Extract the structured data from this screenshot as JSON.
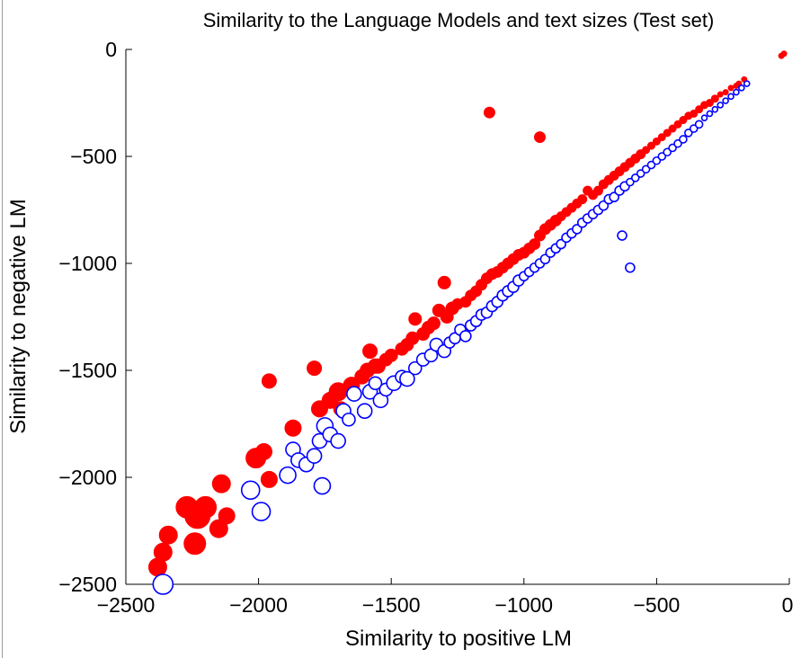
{
  "chart_data": {
    "type": "scatter",
    "title": "Similarity to the Language Models and text sizes (Test set)",
    "xlabel": "Similarity to positive LM",
    "ylabel": "Similarity to negative LM",
    "xlim": [
      -2500,
      0
    ],
    "ylim": [
      -2500,
      0
    ],
    "xticks": [
      "−2500",
      "−2000",
      "−1500",
      "−1000",
      "−500",
      "0"
    ],
    "xtick_values": [
      -2500,
      -2000,
      -1500,
      -1000,
      -500,
      0
    ],
    "yticks": [
      "0",
      "−500",
      "−1000",
      "−1500",
      "−2000",
      "−2500"
    ],
    "ytick_values": [
      0,
      -500,
      -1000,
      -1500,
      -2000,
      -2500
    ],
    "grid": false,
    "marker_size_encodes": "text size",
    "series": [
      {
        "color": "#ff0000",
        "marker": "filled-circle",
        "points": [
          [
            -2380,
            -2420,
            10
          ],
          [
            -2360,
            -2350,
            10
          ],
          [
            -2340,
            -2270,
            10
          ],
          [
            -2240,
            -2310,
            12
          ],
          [
            -2270,
            -2140,
            12
          ],
          [
            -2230,
            -2180,
            14
          ],
          [
            -2200,
            -2140,
            12
          ],
          [
            -2150,
            -2240,
            10
          ],
          [
            -2140,
            -2030,
            10
          ],
          [
            -2120,
            -2180,
            9
          ],
          [
            -2010,
            -1910,
            11
          ],
          [
            -1980,
            -1880,
            9
          ],
          [
            -1960,
            -2010,
            9
          ],
          [
            -1960,
            -1550,
            8
          ],
          [
            -1870,
            -1770,
            9
          ],
          [
            -1790,
            -1490,
            8
          ],
          [
            -1770,
            -1680,
            9
          ],
          [
            -1730,
            -1640,
            9
          ],
          [
            -1700,
            -1600,
            10
          ],
          [
            -1690,
            -1680,
            8
          ],
          [
            -1650,
            -1570,
            9
          ],
          [
            -1610,
            -1530,
            8
          ],
          [
            -1590,
            -1500,
            8
          ],
          [
            -1580,
            -1410,
            8
          ],
          [
            -1560,
            -1480,
            8
          ],
          [
            -1550,
            -1480,
            8
          ],
          [
            -1520,
            -1450,
            7
          ],
          [
            -1500,
            -1430,
            7
          ],
          [
            -1460,
            -1400,
            7
          ],
          [
            -1440,
            -1380,
            7
          ],
          [
            -1420,
            -1350,
            7
          ],
          [
            -1410,
            -1260,
            7
          ],
          [
            -1380,
            -1330,
            7
          ],
          [
            -1360,
            -1300,
            7
          ],
          [
            -1340,
            -1280,
            7
          ],
          [
            -1320,
            -1220,
            7
          ],
          [
            -1300,
            -1090,
            7
          ],
          [
            -1290,
            -1250,
            7
          ],
          [
            -1270,
            -1210,
            7
          ],
          [
            -1250,
            -1190,
            6
          ],
          [
            -1220,
            -1180,
            6
          ],
          [
            -1200,
            -1150,
            6
          ],
          [
            -1180,
            -1130,
            6
          ],
          [
            -1160,
            -1100,
            6
          ],
          [
            -1140,
            -1070,
            6
          ],
          [
            -1120,
            -1050,
            6
          ],
          [
            -1130,
            -295,
            6
          ],
          [
            -1100,
            -1040,
            6
          ],
          [
            -1080,
            -1020,
            6
          ],
          [
            -1060,
            -1000,
            6
          ],
          [
            -1040,
            -980,
            6
          ],
          [
            -1020,
            -960,
            6
          ],
          [
            -1000,
            -950,
            6
          ],
          [
            -980,
            -930,
            6
          ],
          [
            -960,
            -910,
            6
          ],
          [
            -940,
            -410,
            6
          ],
          [
            -940,
            -870,
            6
          ],
          [
            -920,
            -840,
            6
          ],
          [
            -900,
            -820,
            6
          ],
          [
            -880,
            -800,
            6
          ],
          [
            -860,
            -780,
            5
          ],
          [
            -840,
            -760,
            5
          ],
          [
            -820,
            -740,
            5
          ],
          [
            -800,
            -720,
            5
          ],
          [
            -780,
            -700,
            5
          ],
          [
            -760,
            -660,
            5
          ],
          [
            -740,
            -680,
            5
          ],
          [
            -720,
            -660,
            5
          ],
          [
            -700,
            -630,
            5
          ],
          [
            -680,
            -610,
            5
          ],
          [
            -660,
            -590,
            5
          ],
          [
            -640,
            -570,
            5
          ],
          [
            -620,
            -550,
            5
          ],
          [
            -600,
            -530,
            5
          ],
          [
            -580,
            -510,
            5
          ],
          [
            -560,
            -490,
            5
          ],
          [
            -540,
            -470,
            4
          ],
          [
            -520,
            -450,
            4
          ],
          [
            -500,
            -430,
            4
          ],
          [
            -480,
            -410,
            4
          ],
          [
            -460,
            -390,
            4
          ],
          [
            -440,
            -370,
            4
          ],
          [
            -420,
            -350,
            4
          ],
          [
            -400,
            -330,
            4
          ],
          [
            -380,
            -310,
            4
          ],
          [
            -360,
            -300,
            4
          ],
          [
            -340,
            -280,
            4
          ],
          [
            -320,
            -260,
            4
          ],
          [
            -300,
            -250,
            4
          ],
          [
            -280,
            -230,
            4
          ],
          [
            -260,
            -210,
            3
          ],
          [
            -240,
            -200,
            3
          ],
          [
            -220,
            -180,
            3
          ],
          [
            -200,
            -170,
            3
          ],
          [
            -190,
            -160,
            3
          ],
          [
            -170,
            -140,
            3
          ],
          [
            -30,
            -30,
            3
          ],
          [
            -20,
            -20,
            3
          ]
        ]
      },
      {
        "color": "#0000ff",
        "marker": "open-circle",
        "points": [
          [
            -2360,
            -2500,
            11
          ],
          [
            -2030,
            -2060,
            10
          ],
          [
            -1990,
            -2160,
            10
          ],
          [
            -1890,
            -1990,
            9
          ],
          [
            -1870,
            -1870,
            8
          ],
          [
            -1850,
            -1920,
            8
          ],
          [
            -1820,
            -1940,
            8
          ],
          [
            -1790,
            -1900,
            8
          ],
          [
            -1770,
            -1830,
            8
          ],
          [
            -1760,
            -2040,
            9
          ],
          [
            -1750,
            -1760,
            9
          ],
          [
            -1730,
            -1800,
            8
          ],
          [
            -1700,
            -1830,
            8
          ],
          [
            -1680,
            -1690,
            8
          ],
          [
            -1660,
            -1730,
            7
          ],
          [
            -1640,
            -1610,
            8
          ],
          [
            -1600,
            -1690,
            8
          ],
          [
            -1580,
            -1600,
            8
          ],
          [
            -1560,
            -1560,
            7
          ],
          [
            -1540,
            -1640,
            8
          ],
          [
            -1520,
            -1590,
            7
          ],
          [
            -1490,
            -1560,
            8
          ],
          [
            -1460,
            -1530,
            7
          ],
          [
            -1440,
            -1540,
            8
          ],
          [
            -1410,
            -1490,
            7
          ],
          [
            -1380,
            -1450,
            7
          ],
          [
            -1350,
            -1430,
            7
          ],
          [
            -1330,
            -1380,
            7
          ],
          [
            -1300,
            -1410,
            7
          ],
          [
            -1280,
            -1370,
            6
          ],
          [
            -1260,
            -1350,
            6
          ],
          [
            -1240,
            -1310,
            6
          ],
          [
            -1220,
            -1340,
            6
          ],
          [
            -1200,
            -1290,
            6
          ],
          [
            -1180,
            -1270,
            6
          ],
          [
            -1160,
            -1240,
            6
          ],
          [
            -1140,
            -1230,
            6
          ],
          [
            -1120,
            -1200,
            6
          ],
          [
            -1100,
            -1180,
            6
          ],
          [
            -1080,
            -1150,
            6
          ],
          [
            -1060,
            -1130,
            6
          ],
          [
            -1040,
            -1110,
            6
          ],
          [
            -1020,
            -1080,
            6
          ],
          [
            -1000,
            -1060,
            5
          ],
          [
            -980,
            -1040,
            5
          ],
          [
            -960,
            -1020,
            5
          ],
          [
            -940,
            -1000,
            5
          ],
          [
            -920,
            -980,
            5
          ],
          [
            -900,
            -950,
            5
          ],
          [
            -880,
            -930,
            5
          ],
          [
            -860,
            -910,
            5
          ],
          [
            -840,
            -880,
            5
          ],
          [
            -820,
            -860,
            5
          ],
          [
            -800,
            -840,
            5
          ],
          [
            -780,
            -810,
            5
          ],
          [
            -760,
            -790,
            5
          ],
          [
            -740,
            -770,
            5
          ],
          [
            -720,
            -750,
            5
          ],
          [
            -700,
            -730,
            5
          ],
          [
            -680,
            -700,
            5
          ],
          [
            -660,
            -690,
            5
          ],
          [
            -640,
            -660,
            5
          ],
          [
            -630,
            -870,
            5
          ],
          [
            -620,
            -640,
            5
          ],
          [
            -600,
            -1020,
            5
          ],
          [
            -600,
            -620,
            4
          ],
          [
            -580,
            -600,
            4
          ],
          [
            -560,
            -580,
            4
          ],
          [
            -540,
            -560,
            4
          ],
          [
            -520,
            -540,
            4
          ],
          [
            -500,
            -520,
            4
          ],
          [
            -480,
            -500,
            4
          ],
          [
            -460,
            -480,
            4
          ],
          [
            -440,
            -460,
            4
          ],
          [
            -420,
            -440,
            4
          ],
          [
            -400,
            -420,
            4
          ],
          [
            -380,
            -390,
            4
          ],
          [
            -360,
            -370,
            4
          ],
          [
            -340,
            -350,
            4
          ],
          [
            -320,
            -320,
            3
          ],
          [
            -300,
            -300,
            3
          ],
          [
            -280,
            -280,
            3
          ],
          [
            -260,
            -260,
            3
          ],
          [
            -240,
            -240,
            3
          ],
          [
            -220,
            -220,
            3
          ],
          [
            -200,
            -200,
            3
          ],
          [
            -180,
            -180,
            3
          ],
          [
            -160,
            -160,
            3
          ]
        ]
      }
    ]
  }
}
